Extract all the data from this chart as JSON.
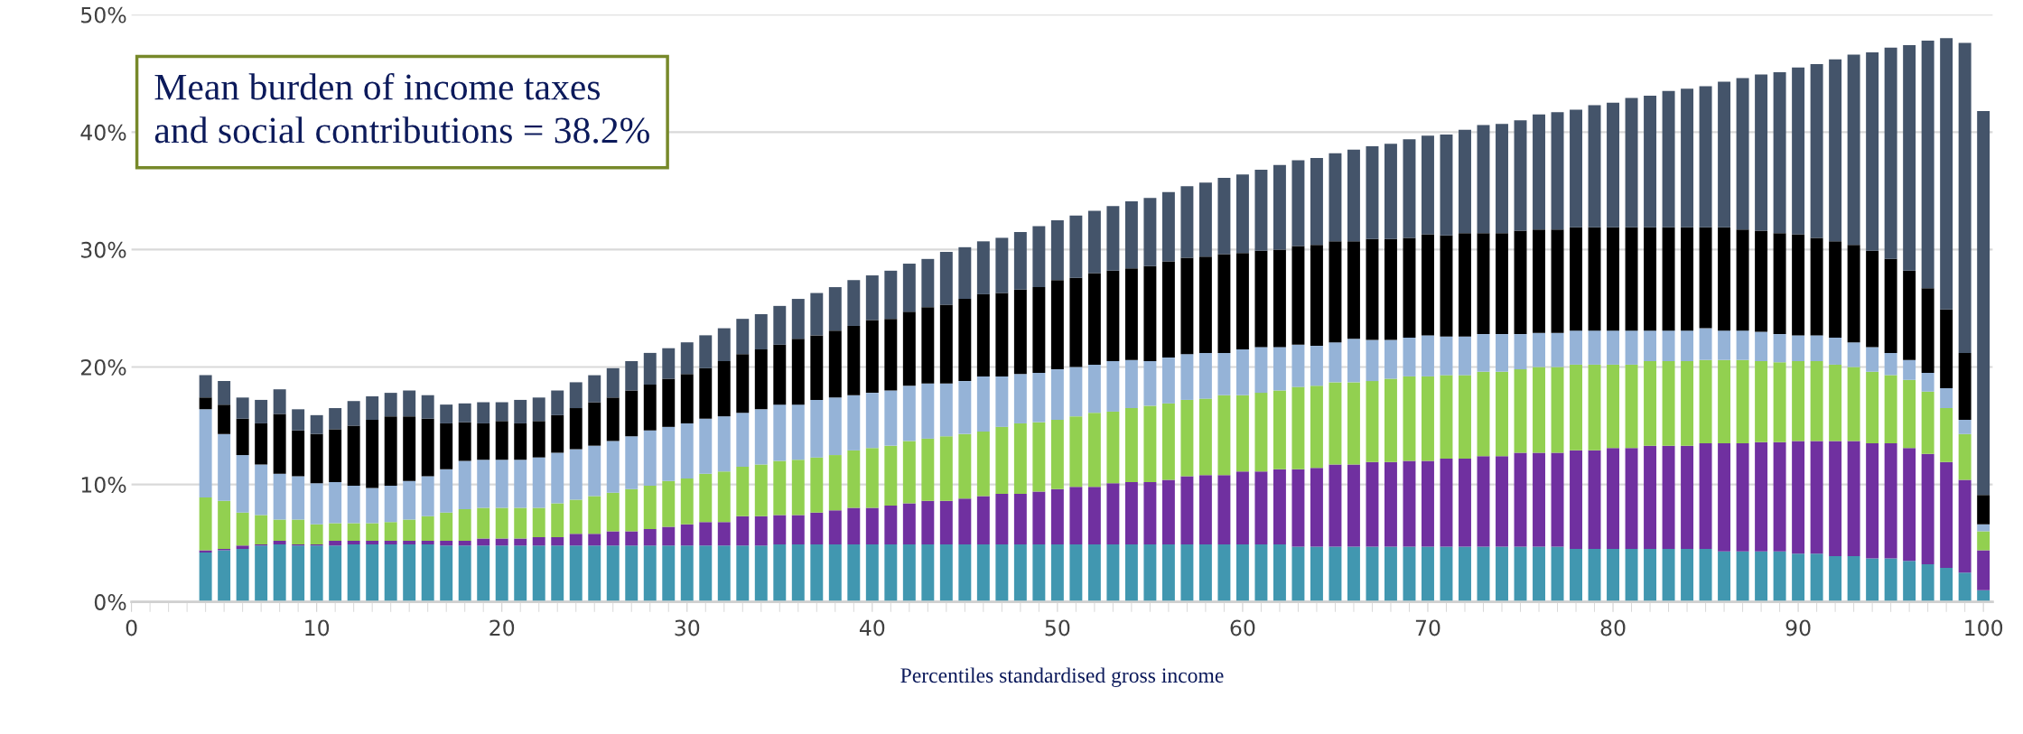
{
  "chart_data": {
    "type": "bar",
    "stacked": true,
    "xlabel": "Percentiles standardised gross income",
    "annotations": [
      "Mean burden of income taxes\nand social contributions = 38.2%"
    ],
    "x": [
      4,
      5,
      6,
      7,
      8,
      9,
      10,
      11,
      12,
      13,
      14,
      15,
      16,
      17,
      18,
      19,
      20,
      21,
      22,
      23,
      24,
      25,
      26,
      27,
      28,
      29,
      30,
      31,
      32,
      33,
      34,
      35,
      36,
      37,
      38,
      39,
      40,
      41,
      42,
      43,
      44,
      45,
      46,
      47,
      48,
      49,
      50,
      51,
      52,
      53,
      54,
      55,
      56,
      57,
      58,
      59,
      60,
      61,
      62,
      63,
      64,
      65,
      66,
      67,
      68,
      69,
      70,
      71,
      72,
      73,
      74,
      75,
      76,
      77,
      78,
      79,
      80,
      81,
      82,
      83,
      84,
      85,
      86,
      87,
      88,
      89,
      90,
      91,
      92,
      93,
      94,
      95,
      96,
      97,
      98,
      99,
      100
    ],
    "series": [
      {
        "color": "#4197b0",
        "values": [
          4.2,
          4.4,
          4.5,
          4.8,
          4.9,
          4.8,
          4.8,
          4.8,
          4.9,
          4.9,
          4.9,
          4.9,
          4.9,
          4.8,
          4.8,
          4.8,
          4.8,
          4.8,
          4.8,
          4.8,
          4.8,
          4.8,
          4.8,
          4.8,
          4.8,
          4.8,
          4.8,
          4.8,
          4.8,
          4.8,
          4.8,
          4.9,
          4.9,
          4.9,
          4.9,
          4.9,
          4.9,
          4.9,
          4.9,
          4.9,
          4.9,
          4.9,
          4.9,
          4.9,
          4.9,
          4.9,
          4.9,
          4.9,
          4.9,
          4.9,
          4.9,
          4.9,
          4.9,
          4.9,
          4.9,
          4.9,
          4.9,
          4.9,
          4.9,
          4.7,
          4.7,
          4.7,
          4.7,
          4.7,
          4.7,
          4.7,
          4.7,
          4.7,
          4.7,
          4.7,
          4.7,
          4.7,
          4.7,
          4.7,
          4.5,
          4.5,
          4.5,
          4.5,
          4.5,
          4.5,
          4.5,
          4.5,
          4.3,
          4.3,
          4.3,
          4.3,
          4.1,
          4.1,
          3.9,
          3.9,
          3.7,
          3.7,
          3.5,
          3.2,
          2.9,
          2.5,
          1.0
        ]
      },
      {
        "color": "#7030a0",
        "values": [
          0.2,
          0.1,
          0.3,
          0.1,
          0.3,
          0.1,
          0.1,
          0.4,
          0.3,
          0.3,
          0.3,
          0.3,
          0.3,
          0.4,
          0.4,
          0.6,
          0.6,
          0.6,
          0.7,
          0.7,
          1.0,
          1.0,
          1.2,
          1.2,
          1.4,
          1.6,
          1.8,
          2.0,
          2.0,
          2.5,
          2.5,
          2.5,
          2.5,
          2.7,
          2.9,
          3.1,
          3.1,
          3.3,
          3.5,
          3.7,
          3.7,
          3.9,
          4.1,
          4.3,
          4.3,
          4.5,
          4.7,
          4.9,
          4.9,
          5.2,
          5.3,
          5.3,
          5.5,
          5.8,
          5.9,
          5.9,
          6.2,
          6.2,
          6.4,
          6.6,
          6.7,
          7.0,
          7.0,
          7.2,
          7.2,
          7.3,
          7.3,
          7.5,
          7.5,
          7.7,
          7.7,
          8.0,
          8.0,
          8.0,
          8.4,
          8.4,
          8.6,
          8.6,
          8.8,
          8.8,
          8.8,
          9.0,
          9.2,
          9.2,
          9.3,
          9.3,
          9.6,
          9.6,
          9.8,
          9.8,
          9.8,
          9.8,
          9.6,
          9.4,
          9.0,
          7.9,
          3.4
        ]
      },
      {
        "color": "#92d050",
        "values": [
          4.5,
          4.1,
          2.8,
          2.5,
          1.8,
          2.1,
          1.7,
          1.5,
          1.5,
          1.5,
          1.6,
          1.8,
          2.1,
          2.4,
          2.7,
          2.6,
          2.6,
          2.6,
          2.5,
          2.9,
          2.9,
          3.2,
          3.3,
          3.6,
          3.7,
          3.9,
          3.9,
          4.1,
          4.3,
          4.2,
          4.4,
          4.6,
          4.7,
          4.7,
          4.7,
          4.9,
          5.1,
          5.1,
          5.3,
          5.3,
          5.5,
          5.5,
          5.5,
          5.7,
          6.0,
          5.9,
          5.9,
          6.0,
          6.3,
          6.1,
          6.3,
          6.5,
          6.5,
          6.5,
          6.5,
          6.8,
          6.5,
          6.7,
          6.7,
          7.0,
          7.0,
          7.0,
          7.0,
          6.9,
          7.1,
          7.2,
          7.2,
          7.1,
          7.1,
          7.2,
          7.2,
          7.1,
          7.3,
          7.3,
          7.3,
          7.3,
          7.1,
          7.1,
          7.2,
          7.2,
          7.2,
          7.1,
          7.1,
          7.1,
          6.9,
          6.8,
          6.8,
          6.8,
          6.5,
          6.3,
          6.1,
          5.8,
          5.8,
          5.3,
          4.6,
          3.9,
          1.6
        ]
      },
      {
        "color": "#95b3d7",
        "values": [
          7.5,
          5.7,
          4.9,
          4.3,
          3.9,
          3.7,
          3.5,
          3.5,
          3.2,
          3.0,
          3.1,
          3.3,
          3.4,
          3.7,
          4.1,
          4.1,
          4.1,
          4.1,
          4.3,
          4.3,
          4.3,
          4.3,
          4.4,
          4.5,
          4.7,
          4.6,
          4.7,
          4.7,
          4.7,
          4.6,
          4.7,
          4.8,
          4.7,
          4.9,
          4.9,
          4.7,
          4.7,
          4.7,
          4.7,
          4.7,
          4.5,
          4.5,
          4.7,
          4.3,
          4.2,
          4.2,
          4.3,
          4.2,
          4.1,
          4.3,
          4.1,
          3.8,
          3.9,
          3.9,
          3.9,
          3.6,
          3.9,
          3.9,
          3.7,
          3.6,
          3.4,
          3.4,
          3.7,
          3.5,
          3.3,
          3.3,
          3.5,
          3.3,
          3.3,
          3.2,
          3.2,
          3.0,
          2.9,
          2.9,
          2.9,
          2.9,
          2.9,
          2.9,
          2.6,
          2.6,
          2.6,
          2.7,
          2.5,
          2.5,
          2.5,
          2.4,
          2.2,
          2.2,
          2.3,
          2.1,
          2.1,
          1.9,
          1.7,
          1.6,
          1.7,
          1.2,
          0.6
        ]
      },
      {
        "color": "#000000",
        "values": [
          1.0,
          2.5,
          3.1,
          3.5,
          5.1,
          3.9,
          4.2,
          4.5,
          5.1,
          5.8,
          5.9,
          5.5,
          4.9,
          3.9,
          3.3,
          3.1,
          3.3,
          3.1,
          3.1,
          3.2,
          3.5,
          3.7,
          3.7,
          3.9,
          3.9,
          4.1,
          4.2,
          4.3,
          4.7,
          5.0,
          5.1,
          5.1,
          5.6,
          5.5,
          5.7,
          5.9,
          6.2,
          6.1,
          6.3,
          6.5,
          6.7,
          7.0,
          7.0,
          7.1,
          7.2,
          7.3,
          7.6,
          7.6,
          7.8,
          7.7,
          7.8,
          8.1,
          8.2,
          8.2,
          8.2,
          8.4,
          8.2,
          8.2,
          8.3,
          8.4,
          8.6,
          8.6,
          8.3,
          8.6,
          8.6,
          8.5,
          8.6,
          8.6,
          8.8,
          8.6,
          8.6,
          8.8,
          8.8,
          8.8,
          8.8,
          8.8,
          8.8,
          8.8,
          8.8,
          8.8,
          8.8,
          8.6,
          8.8,
          8.6,
          8.6,
          8.6,
          8.6,
          8.3,
          8.2,
          8.3,
          8.2,
          8.0,
          7.6,
          7.2,
          6.7,
          5.7,
          2.5
        ]
      },
      {
        "color": "#44546a",
        "values": [
          1.9,
          2.0,
          1.8,
          2.0,
          2.1,
          1.8,
          1.6,
          1.8,
          2.1,
          2.0,
          2.0,
          2.2,
          2.0,
          1.6,
          1.6,
          1.8,
          1.6,
          2.0,
          2.0,
          2.1,
          2.2,
          2.3,
          2.5,
          2.5,
          2.7,
          2.6,
          2.7,
          2.8,
          2.8,
          3.0,
          3.0,
          3.3,
          3.4,
          3.6,
          3.7,
          3.9,
          3.8,
          4.1,
          4.1,
          4.1,
          4.5,
          4.4,
          4.5,
          4.7,
          4.9,
          5.2,
          5.1,
          5.3,
          5.3,
          5.5,
          5.7,
          5.8,
          5.9,
          6.1,
          6.3,
          6.5,
          6.7,
          6.9,
          7.2,
          7.3,
          7.4,
          7.5,
          7.8,
          7.9,
          8.1,
          8.4,
          8.4,
          8.6,
          8.8,
          9.2,
          9.3,
          9.4,
          9.8,
          10.0,
          10.0,
          10.4,
          10.6,
          11.0,
          11.2,
          11.6,
          11.8,
          12.0,
          12.4,
          12.9,
          13.3,
          13.7,
          14.2,
          14.8,
          15.5,
          16.2,
          16.9,
          18.0,
          19.2,
          21.1,
          23.1,
          26.4,
          32.7
        ]
      }
    ],
    "xlim": [
      0,
      100.5
    ],
    "xticks": [
      0,
      10,
      20,
      30,
      40,
      50,
      60,
      70,
      80,
      90,
      100
    ],
    "ylim": [
      0,
      50
    ],
    "yticks": [
      {
        "value": 0,
        "label": "0%"
      },
      {
        "value": 10,
        "label": "10%"
      },
      {
        "value": 20,
        "label": "20%"
      },
      {
        "value": 30,
        "label": "30%"
      },
      {
        "value": 40,
        "label": "40%"
      },
      {
        "value": 50,
        "label": "50%"
      }
    ],
    "grid": "y"
  }
}
